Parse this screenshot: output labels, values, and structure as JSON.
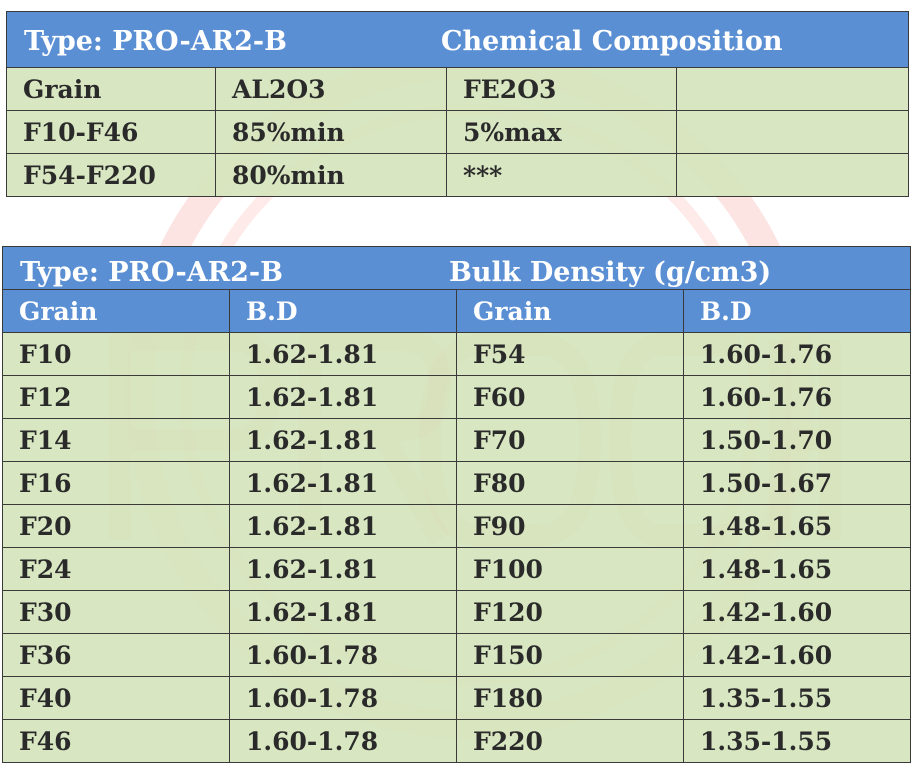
{
  "watermark": {
    "color": "#e8322a",
    "text": "PROCITY"
  },
  "composition": {
    "type_label": "Type: PRO-AR2-B",
    "title": "Chemical Composition",
    "rows": [
      [
        "Grain",
        "AL2O3",
        "FE2O3",
        ""
      ],
      [
        "F10-F46",
        "85%min",
        "5%max",
        ""
      ],
      [
        "F54-F220",
        "80%min",
        "***",
        ""
      ]
    ]
  },
  "density": {
    "type_label": "Type: PRO-AR2-B",
    "title": "Bulk Density (g/cm3)",
    "headers": [
      "Grain",
      "B.D",
      "Grain",
      "B.D"
    ],
    "rows": [
      [
        "F10",
        "1.62-1.81",
        "F54",
        "1.60-1.76"
      ],
      [
        "F12",
        "1.62-1.81",
        "F60",
        "1.60-1.76"
      ],
      [
        "F14",
        "1.62-1.81",
        "F70",
        "1.50-1.70"
      ],
      [
        "F16",
        "1.62-1.81",
        "F80",
        "1.50-1.67"
      ],
      [
        "F20",
        "1.62-1.81",
        "F90",
        "1.48-1.65"
      ],
      [
        "F24",
        "1.62-1.81",
        "F100",
        "1.48-1.65"
      ],
      [
        "F30",
        "1.62-1.81",
        "F120",
        "1.42-1.60"
      ],
      [
        "F36",
        "1.60-1.78",
        "F150",
        "1.42-1.60"
      ],
      [
        "F40",
        "1.60-1.78",
        "F180",
        "1.35-1.55"
      ],
      [
        "F46",
        "1.60-1.78",
        "F220",
        "1.35-1.55"
      ]
    ]
  }
}
